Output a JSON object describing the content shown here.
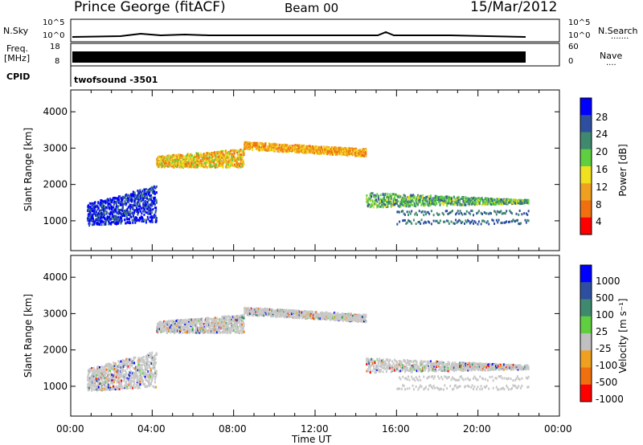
{
  "header": {
    "station": "Prince George (fitACF)",
    "beam": "Beam 00",
    "date": "15/Mar/2012"
  },
  "panels": {
    "nsky": {
      "label": "N.Sky",
      "ticks": [
        "10^5",
        "10^0"
      ],
      "right_ticks": [
        "10^5",
        "10^0"
      ],
      "right_label": "N.Search",
      "right_dots": "......."
    },
    "freq": {
      "label_top": "Freq.",
      "label_unit": "[MHz]",
      "ticks": [
        "18",
        "8"
      ],
      "right_ticks": [
        "60",
        "0"
      ],
      "right_label": "Nave",
      "right_dots": "...."
    },
    "cpid": {
      "label": "CPID",
      "text": "twofsound -3501"
    }
  },
  "power_panel": {
    "ylabel": "Slant Range [km]",
    "colorbar_label": "Power [dB]",
    "colorbar_ticks": [
      "28",
      "24",
      "20",
      "16",
      "12",
      "8",
      "4"
    ]
  },
  "velocity_panel": {
    "ylabel": "Slant Range [km]",
    "colorbar_label": "Velocity [m s⁻¹]",
    "colorbar_ticks": [
      "1000",
      "500",
      "100",
      "25",
      "-25",
      "-100",
      "-500",
      "-1000"
    ]
  },
  "xaxis": {
    "label": "Time UT",
    "ticks": [
      "00:00",
      "04:00",
      "08:00",
      "12:00",
      "16:00",
      "20:00",
      "00:00"
    ]
  },
  "chart_data": [
    {
      "type": "heatmap",
      "name": "Power",
      "xlim": [
        0,
        24
      ],
      "ylim": [
        180,
        4600
      ],
      "yticks": [
        1000,
        2000,
        3000,
        4000
      ],
      "colorbar": [
        "#0000ff",
        "#2e4fa0",
        "#3f8a6f",
        "#5fcf3f",
        "#f0e020",
        "#f0a020",
        "#f07010",
        "#ff0000"
      ],
      "echo_bands": [
        {
          "t": [
            0.8,
            4.2
          ],
          "r_start": [
            900,
            1000
          ],
          "r_end": [
            1500,
            2000
          ],
          "level": 28
        },
        {
          "t": [
            4.2,
            8.5
          ],
          "r_start": [
            2500,
            2500
          ],
          "r_end": [
            2800,
            3000
          ],
          "level": 12
        },
        {
          "t": [
            8.5,
            14.5
          ],
          "r_start": [
            3000,
            2800
          ],
          "r_end": [
            3200,
            3000
          ],
          "level": 10
        },
        {
          "t": [
            14.5,
            22.5
          ],
          "r_start": [
            1800,
            1600
          ],
          "r_end": [
            1400,
            1500
          ],
          "level": 20
        }
      ]
    },
    {
      "type": "heatmap",
      "name": "Velocity",
      "xlim": [
        0,
        24
      ],
      "ylim": [
        180,
        4600
      ],
      "yticks": [
        1000,
        2000,
        3000,
        4000
      ],
      "colorbar": [
        "#0000ff",
        "#2e4fa0",
        "#3f8a6f",
        "#5fcf3f",
        "#c0c0c0",
        "#f0a020",
        "#f07010",
        "#ff0000"
      ]
    }
  ],
  "colors": {
    "axis": "#000000",
    "background": "#ffffff"
  }
}
